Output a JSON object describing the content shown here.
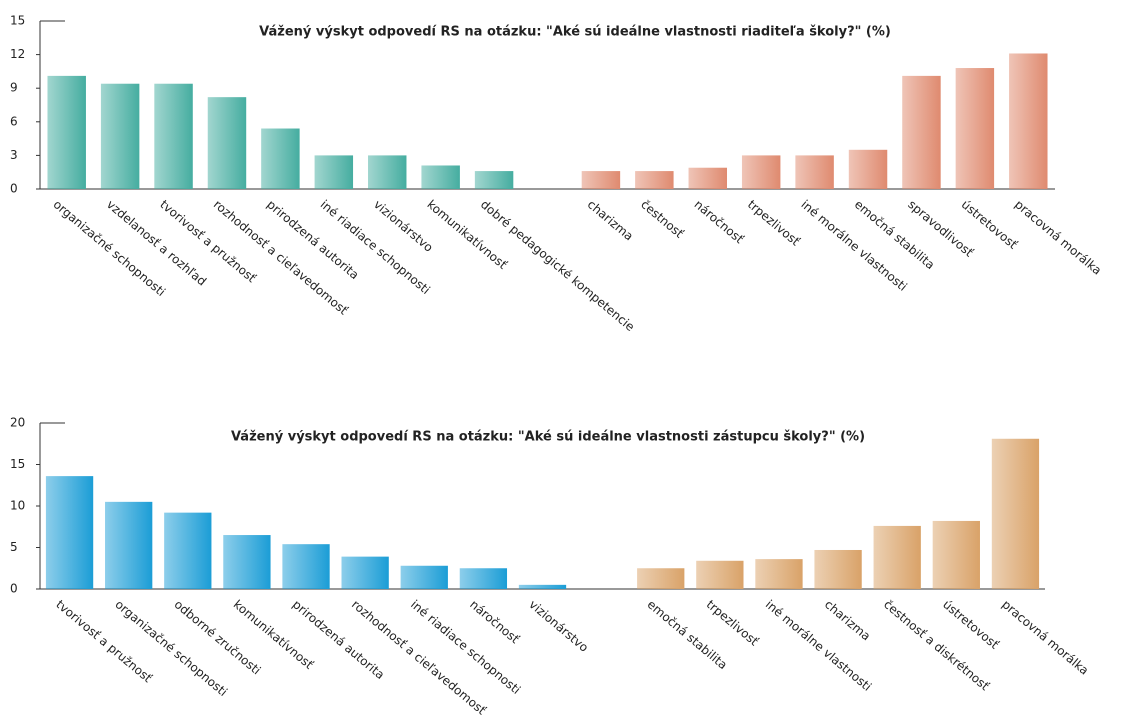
{
  "chart_data": [
    {
      "type": "bar",
      "title": "Vážený výskyt odpovedí RS na otázku: \"Aké sú ideálne vlastnosti riaditeľa školy?\" (%)",
      "categories": [
        "organizačné schopnosti",
        "vzdelanosť a rozhľad",
        "tvorivosť a pružnosť",
        "rozhodnosť a cieľavedomosť",
        "prirodzená autorita",
        "iné riadiace schopnosti",
        "vizionárstvo",
        "komunikatívnosť",
        "dobré pedagogické kompetencie",
        null,
        "charizma",
        "čestnosť",
        "náročnosť",
        "trpezlivosť",
        "iné morálne vlastnosti",
        "emočná stabilita",
        "spravodlivosť",
        "ústretovosť",
        "pracovná morálka"
      ],
      "values": [
        10.1,
        9.4,
        9.4,
        8.2,
        5.4,
        3.0,
        3.0,
        2.1,
        1.6,
        null,
        1.6,
        1.6,
        1.9,
        3.0,
        3.0,
        3.5,
        10.1,
        10.8,
        12.1
      ],
      "colors": [
        "#45ada0",
        "#45ada0",
        "#45ada0",
        "#45ada0",
        "#45ada0",
        "#45ada0",
        "#45ada0",
        "#45ada0",
        "#45ada0",
        null,
        "#df8a6f",
        "#df8a6f",
        "#df8a6f",
        "#df8a6f",
        "#df8a6f",
        "#df8a6f",
        "#df8a6f",
        "#df8a6f",
        "#df8a6f"
      ],
      "ylim": [
        0,
        15
      ],
      "yticks": [
        0,
        3,
        6,
        9,
        12,
        15
      ]
    },
    {
      "type": "bar",
      "title": "Vážený výskyt odpovedí RS na otázku: \"Aké sú ideálne vlastnosti zástupcu školy?\" (%)",
      "categories": [
        "tvorivosť a pružnosť",
        "organizačné schopnosti",
        "odborné zručnosti",
        "komunikatívnosť",
        "prirodzená autorita",
        "rozhodnosť a cieľavedomosť",
        "iné riadiace schopnosti",
        "náročnosť",
        "vizionárstvo",
        null,
        "emočná stabilita",
        "trpezlivosť",
        "iné morálne vlastnosti",
        "charizma",
        "čestnosť a diskrétnosť",
        "ústretovosť",
        "pracovná morálka"
      ],
      "values": [
        13.6,
        10.5,
        9.2,
        6.5,
        5.4,
        3.9,
        2.8,
        2.5,
        0.5,
        null,
        2.5,
        3.4,
        3.6,
        4.7,
        7.6,
        8.2,
        18.1
      ],
      "colors": [
        "#1b9dd6",
        "#1b9dd6",
        "#1b9dd6",
        "#1b9dd6",
        "#1b9dd6",
        "#1b9dd6",
        "#1b9dd6",
        "#1b9dd6",
        "#1b9dd6",
        null,
        "#d9a268",
        "#d9a268",
        "#d9a268",
        "#d9a268",
        "#d9a268",
        "#d9a268",
        "#d9a268"
      ],
      "ylim": [
        0,
        20
      ],
      "yticks": [
        0,
        5,
        10,
        15,
        20
      ]
    }
  ]
}
